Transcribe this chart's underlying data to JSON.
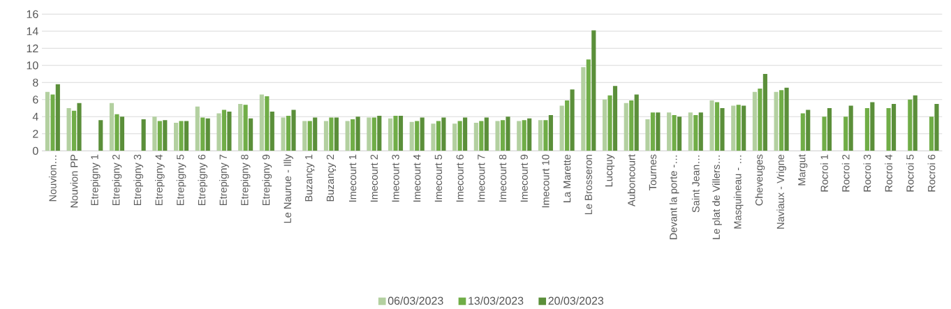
{
  "chart_data": {
    "type": "bar",
    "categories": [
      "Nouvion…",
      "Nouvion PP",
      "Etrepigny 1",
      "Etrepigny 2",
      "Etrepigny 3",
      "Etrepigny 4",
      "Etrepigny 5",
      "Etrepigny 6",
      "Etrepigny 7",
      "Etrepigny 8",
      "Etrepigny 9",
      "Le Naurue - Illy",
      "Buzançy 1",
      "Buzançy 2",
      "Imecourt 1",
      "Imecourt 2",
      "Imecourt 3",
      "Imecourt 4",
      "Imecourt 5",
      "Imecourt 6",
      "Imecourt 7",
      "Imecourt 8",
      "Imecourt 9",
      "Imecourt 10",
      "La Marette",
      "Le Brosseron",
      "Lucquy",
      "Auboncourt",
      "Tournes",
      "Devant la porte -…",
      "Saint Jean…",
      "Le plat de Villers…",
      "Masquineau - …",
      "Cheveuges",
      "Naviaux - Vrigne",
      "Margut",
      "Rocroi 1",
      "Rocroi 2",
      "Rocroi 3",
      "Rocroi 4",
      "Rocroi 5",
      "Rocroi 6"
    ],
    "series": [
      {
        "name": "06/03/2023",
        "color": "#b3d0a0",
        "values": [
          6.9,
          5.0,
          null,
          5.6,
          null,
          4.0,
          3.3,
          5.2,
          4.4,
          5.5,
          6.6,
          3.9,
          3.5,
          3.5,
          3.5,
          3.9,
          3.8,
          3.4,
          3.2,
          3.2,
          3.3,
          3.5,
          3.5,
          3.6,
          5.3,
          9.8,
          6.0,
          5.6,
          3.7,
          4.5,
          4.5,
          5.9,
          5.3,
          6.9,
          6.9,
          null,
          null,
          null,
          null,
          null,
          null,
          null
        ]
      },
      {
        "name": "13/03/2023",
        "color": "#70ad47",
        "values": [
          6.6,
          4.7,
          null,
          4.3,
          null,
          3.5,
          3.5,
          3.9,
          4.8,
          5.4,
          6.4,
          4.1,
          3.5,
          3.9,
          3.7,
          3.9,
          4.1,
          3.5,
          3.5,
          3.5,
          3.5,
          3.6,
          3.6,
          3.6,
          5.9,
          10.7,
          6.5,
          5.9,
          4.5,
          4.2,
          4.2,
          5.7,
          5.4,
          7.3,
          7.1,
          4.4,
          4.0,
          4.0,
          5.0,
          5.0,
          6.0,
          4.0
        ]
      },
      {
        "name": "20/03/2023",
        "color": "#5b8f3a",
        "values": [
          7.8,
          5.6,
          3.6,
          4.0,
          3.7,
          3.6,
          3.5,
          3.8,
          4.6,
          3.8,
          4.6,
          4.8,
          3.9,
          3.9,
          4.0,
          4.1,
          4.1,
          3.9,
          3.9,
          3.9,
          3.9,
          4.0,
          3.8,
          4.2,
          7.2,
          14.1,
          7.6,
          6.6,
          4.5,
          4.0,
          4.5,
          5.0,
          5.3,
          9.0,
          7.4,
          4.8,
          5.0,
          5.3,
          5.7,
          5.5,
          6.5,
          5.5
        ]
      }
    ],
    "ylim": [
      0,
      16
    ],
    "yticks": [
      0,
      2,
      4,
      6,
      8,
      10,
      12,
      14,
      16
    ],
    "grid": "y",
    "legend": "bottom"
  }
}
